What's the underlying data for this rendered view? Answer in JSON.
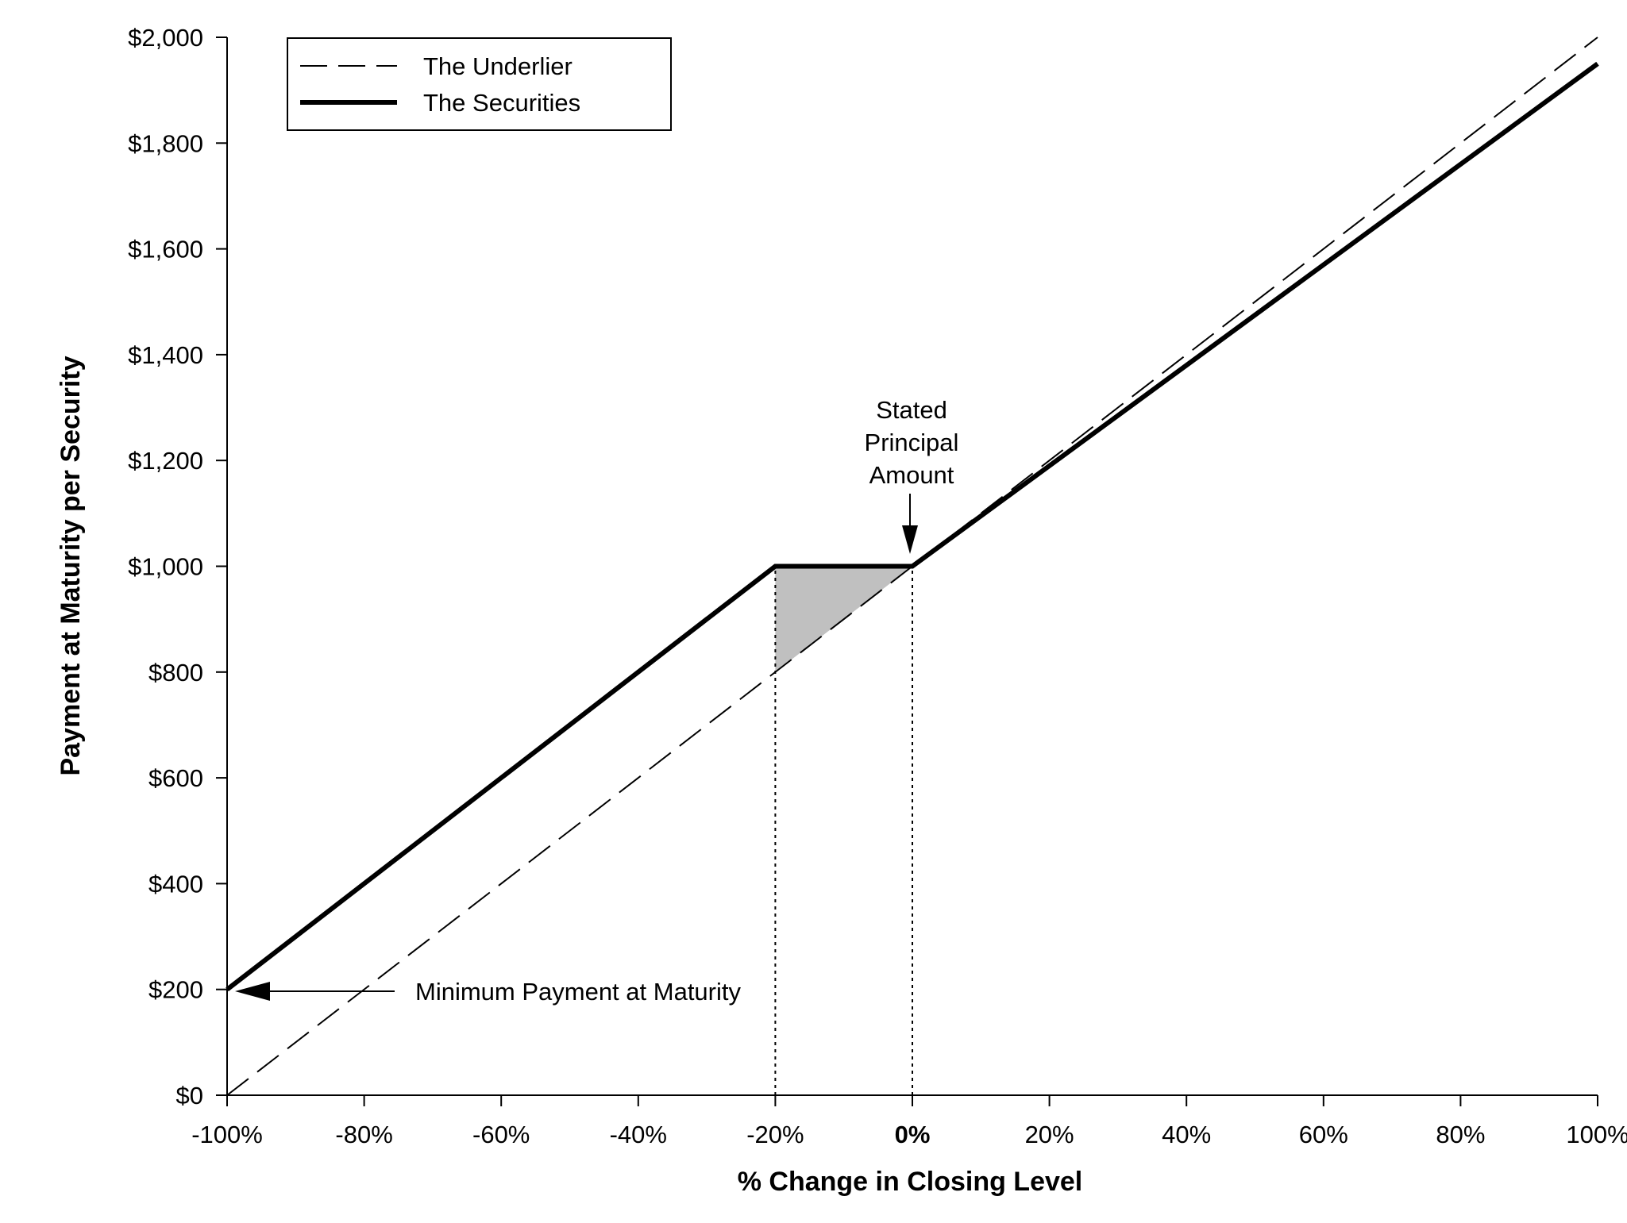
{
  "chart_data": {
    "type": "line",
    "xlabel": "% Change in Closing Level",
    "ylabel": "Payment at Maturity per Security",
    "xlim": [
      -100,
      100
    ],
    "ylim": [
      0,
      2000
    ],
    "x_ticks": [
      -100,
      -80,
      -60,
      -40,
      -20,
      0,
      20,
      40,
      60,
      80,
      100
    ],
    "x_tick_labels": [
      "-100%",
      "-80%",
      "-60%",
      "-40%",
      "-20%",
      "0%",
      "20%",
      "40%",
      "60%",
      "80%",
      "100%"
    ],
    "y_ticks": [
      0,
      200,
      400,
      600,
      800,
      1000,
      1200,
      1400,
      1600,
      1800,
      2000
    ],
    "y_tick_labels": [
      "$0",
      "$200",
      "$400",
      "$600",
      "$800",
      "$1,000",
      "$1,200",
      "$1,400",
      "$1,600",
      "$1,800",
      "$2,000"
    ],
    "grid": false,
    "legend": "top-left",
    "series": [
      {
        "name": "The Underlier",
        "style": "dashed",
        "color": "#000000",
        "x": [
          -100,
          100
        ],
        "y": [
          0,
          2000
        ]
      },
      {
        "name": "The Securities",
        "style": "solid-thick",
        "color": "#000000",
        "x": [
          -100,
          -20,
          0,
          100
        ],
        "y": [
          200,
          1000,
          1000,
          1950
        ]
      }
    ],
    "shaded_region": {
      "color": "#c0c0c0",
      "x": [
        -20,
        0,
        -20
      ],
      "y": [
        1000,
        1000,
        800
      ]
    },
    "reference_lines": [
      {
        "x": -20,
        "y_from": 0,
        "y_to": 1000,
        "style": "dotted"
      },
      {
        "x": 0,
        "y_from": 0,
        "y_to": 1000,
        "style": "dotted"
      }
    ],
    "annotations": [
      {
        "id": "stated-principal",
        "lines": [
          "Stated",
          "Principal",
          "Amount"
        ],
        "target": {
          "x": 0,
          "y": 1000
        }
      },
      {
        "id": "minimum-payment",
        "text": "Minimum Payment at Maturity",
        "target": {
          "x": -100,
          "y": 200
        }
      }
    ]
  }
}
